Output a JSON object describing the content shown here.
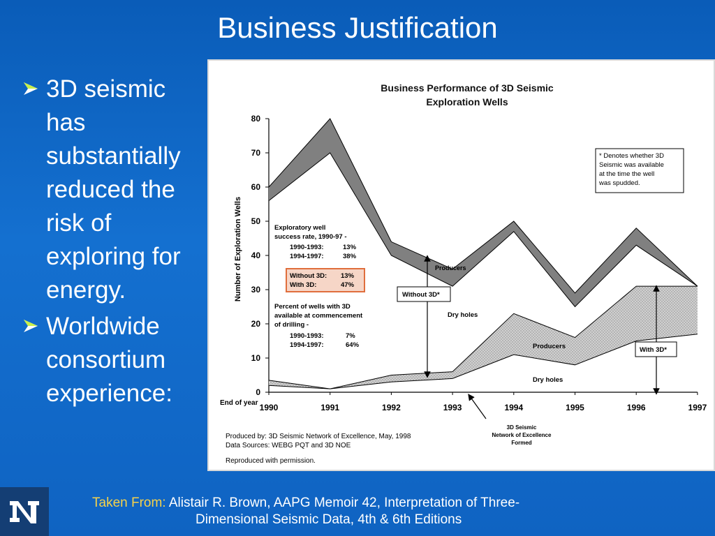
{
  "slide": {
    "title": "Business Justification",
    "bullets": [
      "3D seismic has substantially reduced the risk of exploring for energy.",
      "Worldwide consortium experience:"
    ],
    "credit": {
      "lead": "Taken From:",
      "line1": "Alistair R. Brown, AAPG Memoir 42, Interpretation of Three-",
      "line2": "Dimensional Seismic Data, 4th & 6th Editions"
    },
    "logo": "university-n-logo",
    "colors": {
      "background": "#0f63c2",
      "title": "#ffffff",
      "credit_lead": "#f6d24a"
    }
  },
  "chart_data": {
    "type": "area",
    "title": [
      "Business Performance of 3D Seismic",
      "Exploration Wells"
    ],
    "xlabel": "End of year",
    "ylabel": "Number of Exploration Wells",
    "x": [
      "1990",
      "1991",
      "1992",
      "1993",
      "1994",
      "1995",
      "1996",
      "1997"
    ],
    "ylim": [
      0,
      80
    ],
    "yticks": [
      0,
      10,
      20,
      30,
      40,
      50,
      60,
      70,
      80
    ],
    "series": [
      {
        "group": "without_3d",
        "total": [
          60,
          80,
          44,
          36,
          50,
          29,
          48,
          31
        ],
        "dry": [
          56,
          70,
          40,
          31,
          47,
          25,
          43,
          31
        ],
        "fill": "#808080"
      },
      {
        "group": "with_3d",
        "total": [
          3.5,
          1,
          5,
          6,
          23,
          16,
          31,
          31
        ],
        "dry": [
          2,
          1,
          3,
          4,
          11,
          8,
          15,
          17
        ],
        "fill": "#d0d0d0"
      }
    ],
    "annotations": {
      "note": [
        "* Denotes whether 3D",
        "Seismic was available",
        "at the time the well",
        "was spudded."
      ],
      "success_rate": [
        "Exploratory well",
        "success rate, 1990-97 -"
      ],
      "success_rows": [
        [
          "1990-1993:",
          "13%"
        ],
        [
          "1994-1997:",
          "38%"
        ]
      ],
      "comparison": [
        [
          "Without 3D:",
          "13%"
        ],
        [
          "With 3D:",
          "47%"
        ]
      ],
      "percent_3d": [
        "Percent of wells with 3D",
        "available at commencement",
        "of drilling -"
      ],
      "percent_rows": [
        [
          "1990-1993:",
          "7%"
        ],
        [
          "1994-1997:",
          "64%"
        ]
      ],
      "producers_upper": "Producers",
      "dry_holes_upper": "Dry holes",
      "producers_lower": "Producers",
      "dry_holes_lower": "Dry holes",
      "without_3d_box": "Without 3D*",
      "with_3d_box": "With 3D*",
      "network_formed": [
        "3D Seismic",
        "Network of Excellence",
        "Formed"
      ],
      "footer": [
        "Produced by: 3D Seismic Network of Excellence, May, 1998",
        "Data Sources: WEBG PQT and 3D NOE",
        "Reproduced with permission."
      ]
    },
    "colors": {
      "without_3d_band": "#808080",
      "with_3d_band": "#d0d0d0",
      "comparison_border": "#e06e3c",
      "comparison_fill": "#f6d6c7"
    }
  }
}
